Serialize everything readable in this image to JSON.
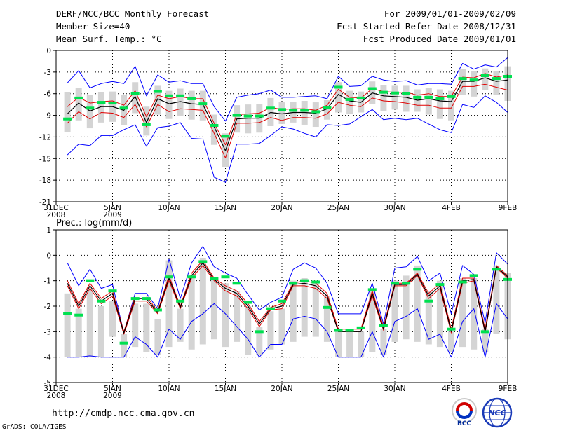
{
  "header": {
    "title": "DERF/NCC/BCC Monthly Forecast",
    "member_size": "Member Size=40",
    "variable": "Mean Surf. Temp.: °C",
    "period": "For 2009/01/01-2009/02/09",
    "started": "Fcst Started Refer Date 2008/12/31",
    "produced": "Fcst Produced Date 2009/01/01"
  },
  "footer": {
    "url": "http://cmdp.ncc.cma.gov.cn",
    "credit": "GrADS: COLA/IGES",
    "logo_bcc": "BCC",
    "logo_ncc": "NCC"
  },
  "colors": {
    "envelope": "#0000ff",
    "percentile": "#e00000",
    "mean": "#000000",
    "box": "#d4d4d4",
    "obs": "#00e050",
    "grid": "#000000"
  },
  "chart_data": [
    {
      "type": "box-plume",
      "title": "Mean Surf. Temp.: °C",
      "ylim": [
        -21,
        0
      ],
      "yticks": [
        0,
        -3,
        -6,
        -9,
        -12,
        -15,
        -18,
        -21
      ],
      "x_tick_labels": [
        {
          "day": 0,
          "label": "31DEC",
          "sub": "2008"
        },
        {
          "day": 5,
          "label": "5JAN",
          "sub": "2009"
        },
        {
          "day": 10,
          "label": "10JAN",
          "sub": ""
        },
        {
          "day": 15,
          "label": "15JAN",
          "sub": ""
        },
        {
          "day": 20,
          "label": "20JAN",
          "sub": ""
        },
        {
          "day": 25,
          "label": "25JAN",
          "sub": ""
        },
        {
          "day": 30,
          "label": "30JAN",
          "sub": ""
        },
        {
          "day": 35,
          "label": "4FEB",
          "sub": ""
        },
        {
          "day": 40,
          "label": "9FEB",
          "sub": ""
        }
      ],
      "days": [
        1,
        2,
        3,
        4,
        5,
        6,
        7,
        8,
        9,
        10,
        11,
        12,
        13,
        14,
        15,
        16,
        17,
        18,
        19,
        20,
        21,
        22,
        23,
        24,
        25,
        26,
        27,
        28,
        29,
        30,
        31,
        32,
        33,
        34,
        35,
        36,
        37,
        38,
        39,
        40
      ],
      "series": [
        {
          "name": "max",
          "values": [
            -4.5,
            -2.8,
            -5.2,
            -4.6,
            -4.3,
            -4.6,
            -2.2,
            -6.3,
            -3.4,
            -4.4,
            -4.2,
            -4.6,
            -4.6,
            -7.8,
            -9.8,
            -6.5,
            -6.2,
            -6.0,
            -5.5,
            -6.5,
            -6.5,
            -6.4,
            -6.3,
            -6.7,
            -3.6,
            -5.0,
            -4.9,
            -3.6,
            -4.1,
            -4.3,
            -4.2,
            -4.8,
            -4.6,
            -4.6,
            -4.7,
            -1.8,
            -2.6,
            -2.0,
            -2.3,
            -1.0
          ]
        },
        {
          "name": "p75",
          "values": [
            -7.8,
            -6.5,
            -7.3,
            -7.1,
            -7.0,
            -7.6,
            -5.6,
            -9.2,
            -6.2,
            -6.7,
            -6.4,
            -6.7,
            -6.7,
            -10.1,
            -13.1,
            -8.9,
            -8.8,
            -8.7,
            -7.9,
            -8.2,
            -8.1,
            -8.1,
            -8.3,
            -7.6,
            -5.4,
            -6.5,
            -6.6,
            -5.3,
            -5.7,
            -5.8,
            -5.8,
            -6.2,
            -6.0,
            -6.4,
            -6.4,
            -3.7,
            -3.8,
            -3.2,
            -3.7,
            -3.4
          ]
        },
        {
          "name": "mean",
          "values": [
            -8.8,
            -7.3,
            -8.4,
            -7.8,
            -7.8,
            -8.3,
            -6.4,
            -10.0,
            -6.7,
            -7.4,
            -7.1,
            -7.4,
            -7.5,
            -10.6,
            -13.9,
            -9.5,
            -9.4,
            -9.4,
            -8.6,
            -8.8,
            -8.6,
            -8.6,
            -8.7,
            -8.1,
            -6.1,
            -7.0,
            -7.2,
            -5.9,
            -6.3,
            -6.4,
            -6.5,
            -6.9,
            -6.7,
            -7.0,
            -7.1,
            -4.3,
            -4.3,
            -3.8,
            -4.3,
            -4.1
          ]
        },
        {
          "name": "p25",
          "values": [
            -10.1,
            -8.5,
            -9.5,
            -8.6,
            -8.7,
            -9.3,
            -7.5,
            -10.6,
            -7.5,
            -8.5,
            -8.1,
            -8.2,
            -8.3,
            -11.5,
            -14.9,
            -10.1,
            -10.1,
            -10.0,
            -9.3,
            -9.7,
            -9.3,
            -9.3,
            -9.4,
            -8.8,
            -7.2,
            -7.6,
            -7.8,
            -6.6,
            -7.0,
            -7.1,
            -7.3,
            -7.6,
            -7.6,
            -8.0,
            -8.0,
            -5.0,
            -5.0,
            -4.7,
            -5.1,
            -5.5
          ]
        },
        {
          "name": "min",
          "values": [
            -14.5,
            -13.0,
            -13.2,
            -11.8,
            -11.8,
            -11.0,
            -10.3,
            -13.3,
            -10.7,
            -10.5,
            -10.0,
            -12.2,
            -12.3,
            -17.6,
            -18.3,
            -13.0,
            -13.0,
            -12.9,
            -11.8,
            -10.6,
            -10.9,
            -11.5,
            -12.0,
            -10.3,
            -10.4,
            -10.2,
            -9.2,
            -8.2,
            -9.6,
            -9.4,
            -9.6,
            -9.4,
            -10.2,
            -11.0,
            -11.4,
            -7.5,
            -7.9,
            -6.3,
            -7.2,
            -8.6
          ]
        },
        {
          "name": "box_top",
          "values": [
            -5.8,
            -5.2,
            -6.2,
            -5.8,
            -5.7,
            -6.2,
            -4.4,
            -7.8,
            -4.9,
            -5.6,
            -5.3,
            -5.6,
            -5.6,
            -8.9,
            -11.5,
            -7.6,
            -7.5,
            -7.4,
            -6.6,
            -7.2,
            -7.1,
            -7.0,
            -7.2,
            -6.9,
            -4.4,
            -5.6,
            -5.7,
            -4.3,
            -4.8,
            -4.9,
            -4.9,
            -5.4,
            -5.2,
            -5.4,
            -5.6,
            -2.6,
            -2.9,
            -2.5,
            -2.9,
            -2.2
          ]
        },
        {
          "name": "box_bottom",
          "values": [
            -11.3,
            -9.7,
            -10.8,
            -10.0,
            -9.9,
            -10.4,
            -8.7,
            -11.8,
            -8.9,
            -9.5,
            -9.1,
            -9.6,
            -9.7,
            -13.1,
            -16.2,
            -11.4,
            -11.5,
            -11.4,
            -10.5,
            -10.2,
            -10.0,
            -10.3,
            -10.6,
            -9.6,
            -8.6,
            -8.8,
            -8.6,
            -7.4,
            -8.4,
            -8.2,
            -8.5,
            -8.5,
            -8.9,
            -9.5,
            -9.7,
            -6.2,
            -6.4,
            -5.5,
            -6.2,
            -7.0
          ]
        },
        {
          "name": "observed",
          "values": [
            -9.5,
            -6.6,
            -8.0,
            -7.2,
            -7.3,
            -8.0,
            -6.0,
            -10.3,
            -5.7,
            -6.3,
            -6.3,
            -6.7,
            -7.4,
            -10.4,
            -11.9,
            -9.0,
            -9.1,
            -9.1,
            -8.0,
            -8.2,
            -8.3,
            -8.3,
            -8.5,
            -7.9,
            -5.1,
            -6.8,
            -6.6,
            -5.3,
            -5.8,
            -5.9,
            -6.0,
            -6.5,
            -6.5,
            -6.7,
            -6.4,
            -3.9,
            -4.1,
            -3.5,
            -3.9,
            -3.6
          ]
        }
      ]
    },
    {
      "type": "box-plume",
      "title": "Prec.: log(mm/d)",
      "ylim": [
        -5,
        1
      ],
      "yticks": [
        1,
        0,
        -1,
        -2,
        -3,
        -4,
        -5
      ],
      "x_tick_labels": [
        {
          "day": 0,
          "label": "31DEC",
          "sub": "2008"
        },
        {
          "day": 5,
          "label": "5JAN",
          "sub": "2009"
        },
        {
          "day": 10,
          "label": "10JAN",
          "sub": ""
        },
        {
          "day": 15,
          "label": "15JAN",
          "sub": ""
        },
        {
          "day": 20,
          "label": "20JAN",
          "sub": ""
        },
        {
          "day": 25,
          "label": "25JAN",
          "sub": ""
        },
        {
          "day": 30,
          "label": "30JAN",
          "sub": ""
        },
        {
          "day": 35,
          "label": "4FEB",
          "sub": ""
        },
        {
          "day": 40,
          "label": "9FEB",
          "sub": ""
        }
      ],
      "days": [
        1,
        2,
        3,
        4,
        5,
        6,
        7,
        8,
        9,
        10,
        11,
        12,
        13,
        14,
        15,
        16,
        17,
        18,
        19,
        20,
        21,
        22,
        23,
        24,
        25,
        26,
        27,
        28,
        29,
        30,
        31,
        32,
        33,
        34,
        35,
        36,
        37,
        38,
        39,
        40
      ],
      "series": [
        {
          "name": "max",
          "values": [
            -0.3,
            -1.2,
            -0.55,
            -1.3,
            -1.15,
            -3.05,
            -1.5,
            -1.5,
            -2.1,
            -0.15,
            -1.7,
            -0.3,
            0.35,
            -0.45,
            -0.7,
            -0.9,
            -1.55,
            -2.15,
            -1.85,
            -1.65,
            -0.55,
            -0.3,
            -0.5,
            -1.1,
            -2.3,
            -2.3,
            -2.3,
            -1.1,
            -2.7,
            -0.5,
            -0.45,
            -0.05,
            -1.0,
            -0.7,
            -2.3,
            -0.4,
            -0.75,
            -2.65,
            0.1,
            -0.35
          ]
        },
        {
          "name": "p75",
          "values": [
            -1.0,
            -1.9,
            -1.1,
            -1.7,
            -1.4,
            -3.0,
            -1.6,
            -1.6,
            -2.2,
            -0.8,
            -2.0,
            -0.7,
            -0.2,
            -0.9,
            -1.2,
            -1.4,
            -1.9,
            -2.6,
            -2.05,
            -1.9,
            -1.1,
            -1.0,
            -1.1,
            -1.5,
            -2.9,
            -2.9,
            -2.9,
            -1.4,
            -2.8,
            -1.1,
            -1.1,
            -0.7,
            -1.5,
            -1.1,
            -2.9,
            -0.9,
            -0.9,
            -2.9,
            -0.4,
            -0.8
          ]
        },
        {
          "name": "mean",
          "values": [
            -1.1,
            -2.0,
            -1.2,
            -1.8,
            -1.5,
            -3.05,
            -1.7,
            -1.7,
            -2.25,
            -0.9,
            -2.05,
            -0.8,
            -0.3,
            -0.95,
            -1.3,
            -1.5,
            -2.0,
            -2.7,
            -2.1,
            -2.0,
            -1.15,
            -1.1,
            -1.2,
            -1.6,
            -3.0,
            -3.0,
            -3.0,
            -1.5,
            -2.9,
            -1.15,
            -1.15,
            -0.75,
            -1.6,
            -1.2,
            -3.0,
            -1.0,
            -0.95,
            -3.0,
            -0.45,
            -0.85
          ]
        },
        {
          "name": "p25",
          "values": [
            -1.2,
            -2.1,
            -1.3,
            -1.9,
            -1.6,
            -3.1,
            -1.8,
            -1.8,
            -2.3,
            -1.0,
            -2.1,
            -0.9,
            -0.4,
            -1.0,
            -1.4,
            -1.6,
            -2.1,
            -2.8,
            -2.15,
            -2.1,
            -1.2,
            -1.2,
            -1.3,
            -1.7,
            -3.0,
            -3.0,
            -3.0,
            -1.6,
            -2.95,
            -1.2,
            -1.2,
            -0.8,
            -1.7,
            -1.3,
            -3.05,
            -1.1,
            -1.0,
            -3.05,
            -0.5,
            -0.9
          ]
        },
        {
          "name": "min",
          "values": [
            -4.0,
            -4.0,
            -3.95,
            -4.0,
            -4.0,
            -4.0,
            -3.2,
            -3.5,
            -4.0,
            -2.9,
            -3.3,
            -2.6,
            -2.3,
            -1.9,
            -2.3,
            -2.8,
            -3.3,
            -4.0,
            -3.5,
            -3.5,
            -2.5,
            -2.4,
            -2.5,
            -3.0,
            -4.0,
            -4.0,
            -4.0,
            -3.0,
            -4.0,
            -2.6,
            -2.4,
            -2.1,
            -3.3,
            -3.1,
            -4.0,
            -2.6,
            -2.1,
            -4.0,
            -1.9,
            -2.5
          ]
        },
        {
          "name": "box_top",
          "values": [
            -1.5,
            -2.1,
            -1.3,
            -2.0,
            -1.8,
            -3.1,
            -1.9,
            -1.9,
            -2.5,
            -0.2,
            -2.1,
            -0.8,
            -0.1,
            -0.9,
            -1.1,
            -1.4,
            -2.0,
            -2.8,
            -2.2,
            -2.1,
            -1.0,
            -0.9,
            -1.0,
            -1.6,
            -3.0,
            -3.0,
            -3.0,
            -1.4,
            -2.9,
            -1.0,
            -0.8,
            -0.4,
            -1.4,
            -1.0,
            -3.0,
            -0.9,
            -0.9,
            -2.9,
            -0.4,
            -0.7
          ]
        },
        {
          "name": "box_bottom",
          "values": [
            -4.0,
            -4.0,
            -4.0,
            -4.0,
            -3.2,
            -4.0,
            -3.6,
            -3.8,
            -3.9,
            -3.6,
            -3.4,
            -3.7,
            -3.5,
            -3.3,
            -3.6,
            -3.4,
            -3.9,
            -3.9,
            -3.7,
            -3.5,
            -3.4,
            -3.2,
            -3.2,
            -3.4,
            -4.0,
            -4.0,
            -4.0,
            -3.8,
            -3.9,
            -3.4,
            -3.3,
            -3.4,
            -3.5,
            -3.6,
            -3.8,
            -3.6,
            -3.7,
            -3.8,
            -3.1,
            -3.3
          ]
        },
        {
          "name": "observed",
          "values": [
            -2.3,
            -2.35,
            -1.0,
            -1.8,
            -1.4,
            -3.45,
            -1.7,
            -1.7,
            -2.15,
            -0.85,
            -1.8,
            -0.85,
            -0.25,
            -0.9,
            -0.85,
            -1.1,
            -1.85,
            -3.0,
            -2.1,
            -1.8,
            -1.1,
            -1.0,
            -1.05,
            -2.05,
            -2.95,
            -2.95,
            -2.85,
            -1.35,
            -2.75,
            -1.1,
            -1.1,
            -0.55,
            -1.8,
            -1.15,
            -2.9,
            -1.05,
            -0.8,
            -3.0,
            -0.55,
            -0.95
          ]
        }
      ]
    }
  ]
}
